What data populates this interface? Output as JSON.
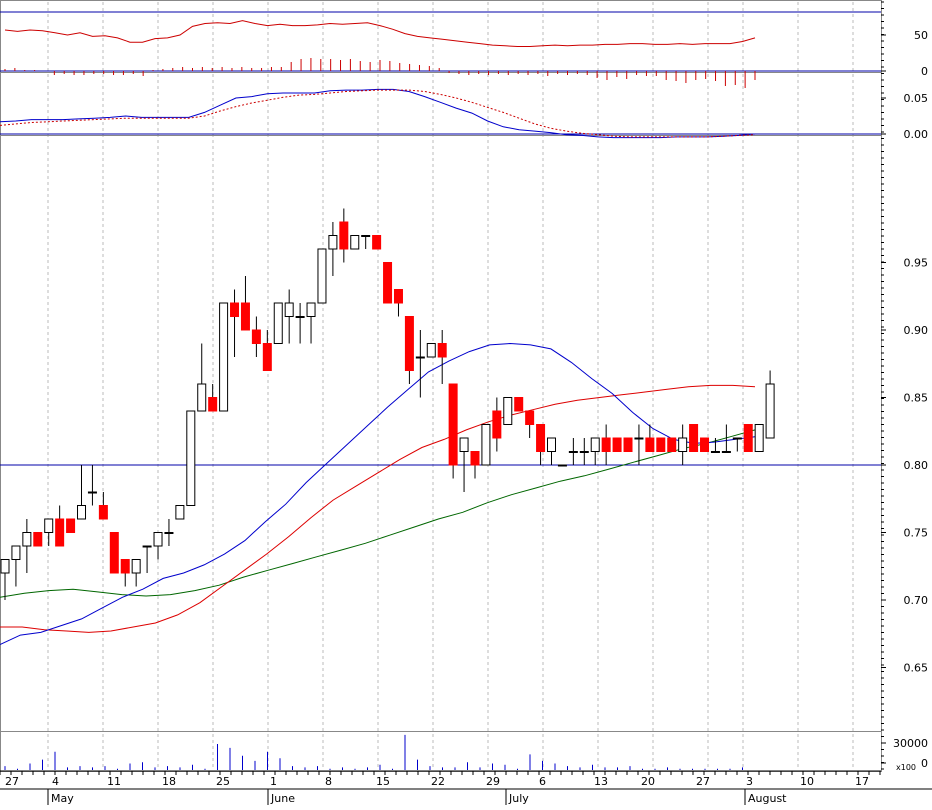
{
  "chart_data": [
    {
      "name": "RSI panel",
      "type": "line",
      "y_ticks": [
        "50",
        "0"
      ],
      "oscillator": [
        57,
        55,
        57,
        56,
        53,
        50,
        53,
        48,
        49,
        46,
        40,
        40,
        45,
        46,
        50,
        62,
        66,
        67,
        66,
        70,
        66,
        63,
        65,
        63,
        63,
        64,
        66,
        65,
        66,
        67,
        63,
        58,
        52,
        48,
        46,
        44,
        42,
        40,
        38,
        36,
        35,
        34,
        34,
        35,
        36,
        35,
        36,
        36,
        37,
        37,
        38,
        38,
        37,
        37,
        38,
        37,
        38,
        38,
        38,
        41,
        46
      ],
      "histogram": [
        2,
        3,
        1,
        1,
        0,
        -4,
        -3,
        -4,
        -4,
        -3,
        -3,
        -4,
        -4,
        -3,
        -5,
        1,
        2,
        3,
        4,
        3,
        4,
        3,
        4,
        3,
        4,
        3,
        3,
        4,
        4,
        9,
        12,
        13,
        12,
        12,
        11,
        12,
        10,
        9,
        11,
        10,
        8,
        7,
        6,
        5,
        3,
        -2,
        -3,
        -4,
        -3,
        -4,
        -3,
        -4,
        -3,
        -4,
        -3,
        -5,
        -3,
        -4,
        -3,
        -4,
        -7,
        -9,
        -6,
        -8,
        -4,
        -5,
        -5,
        -9,
        -10,
        -12,
        -9,
        -8,
        -10,
        -15,
        -14,
        -17,
        -9
      ]
    },
    {
      "name": "MACD panel",
      "type": "line",
      "y_ticks": [
        "0.05",
        "0.00"
      ],
      "macd": [
        0.017,
        0.018,
        0.02,
        0.02,
        0.02,
        0.021,
        0.022,
        0.023,
        0.025,
        0.023,
        0.023,
        0.023,
        0.023,
        0.03,
        0.04,
        0.05,
        0.052,
        0.056,
        0.057,
        0.057,
        0.057,
        0.06,
        0.061,
        0.061,
        0.062,
        0.062,
        0.059,
        0.052,
        0.044,
        0.036,
        0.029,
        0.018,
        0.01,
        0.006,
        0.004,
        0.002,
        -0.001,
        -0.002,
        -0.004,
        -0.005,
        -0.005,
        -0.005,
        -0.005,
        -0.004,
        -0.004,
        -0.004,
        -0.003,
        -0.002,
        0.0
      ],
      "signal": [
        0.012,
        0.014,
        0.016,
        0.017,
        0.018,
        0.019,
        0.02,
        0.021,
        0.022,
        0.022,
        0.022,
        0.022,
        0.022,
        0.025,
        0.032,
        0.038,
        0.043,
        0.047,
        0.051,
        0.054,
        0.055,
        0.057,
        0.059,
        0.06,
        0.061,
        0.061,
        0.061,
        0.059,
        0.055,
        0.05,
        0.044,
        0.037,
        0.03,
        0.022,
        0.014,
        0.008,
        0.004,
        0.001,
        -0.001,
        -0.003,
        -0.004,
        -0.004,
        -0.004,
        -0.004,
        -0.004,
        -0.004,
        -0.003,
        -0.002,
        -0.001
      ]
    },
    {
      "name": "Price panel",
      "type": "candlestick",
      "y_ticks": [
        "0.95",
        "0.90",
        "0.85",
        "0.80",
        "0.75",
        "0.70",
        "0.65"
      ],
      "reference_line": 0.8,
      "candles": [
        [
          0.72,
          0.73,
          0.7,
          0.73
        ],
        [
          0.73,
          0.74,
          0.71,
          0.74
        ],
        [
          0.74,
          0.76,
          0.72,
          0.75
        ],
        [
          0.75,
          0.75,
          0.74,
          0.74
        ],
        [
          0.75,
          0.76,
          0.74,
          0.76
        ],
        [
          0.76,
          0.77,
          0.74,
          0.74
        ],
        [
          0.76,
          0.76,
          0.75,
          0.75
        ],
        [
          0.76,
          0.8,
          0.76,
          0.77
        ],
        [
          0.78,
          0.8,
          0.77,
          0.78
        ],
        [
          0.77,
          0.78,
          0.76,
          0.76
        ],
        [
          0.75,
          0.75,
          0.72,
          0.72
        ],
        [
          0.73,
          0.73,
          0.71,
          0.72
        ],
        [
          0.72,
          0.73,
          0.71,
          0.73
        ],
        [
          0.74,
          0.74,
          0.72,
          0.74
        ],
        [
          0.74,
          0.75,
          0.73,
          0.75
        ],
        [
          0.75,
          0.76,
          0.74,
          0.75
        ],
        [
          0.76,
          0.77,
          0.76,
          0.77
        ],
        [
          0.77,
          0.84,
          0.77,
          0.84
        ],
        [
          0.84,
          0.89,
          0.84,
          0.86
        ],
        [
          0.85,
          0.86,
          0.84,
          0.84
        ],
        [
          0.84,
          0.92,
          0.84,
          0.92
        ],
        [
          0.92,
          0.93,
          0.88,
          0.91
        ],
        [
          0.92,
          0.94,
          0.9,
          0.9
        ],
        [
          0.9,
          0.91,
          0.88,
          0.89
        ],
        [
          0.89,
          0.9,
          0.87,
          0.87
        ],
        [
          0.89,
          0.92,
          0.89,
          0.92
        ],
        [
          0.91,
          0.93,
          0.89,
          0.92
        ],
        [
          0.91,
          0.92,
          0.89,
          0.91
        ],
        [
          0.91,
          0.92,
          0.89,
          0.92
        ],
        [
          0.92,
          0.96,
          0.92,
          0.96
        ],
        [
          0.96,
          0.98,
          0.94,
          0.97
        ],
        [
          0.98,
          0.99,
          0.95,
          0.96
        ],
        [
          0.96,
          0.97,
          0.96,
          0.97
        ],
        [
          0.97,
          0.97,
          0.96,
          0.97
        ],
        [
          0.97,
          0.97,
          0.96,
          0.96
        ],
        [
          0.95,
          0.95,
          0.92,
          0.92
        ],
        [
          0.93,
          0.93,
          0.91,
          0.92
        ],
        [
          0.91,
          0.91,
          0.86,
          0.87
        ],
        [
          0.88,
          0.9,
          0.85,
          0.88
        ],
        [
          0.88,
          0.89,
          0.88,
          0.89
        ],
        [
          0.89,
          0.9,
          0.86,
          0.88
        ],
        [
          0.86,
          0.86,
          0.79,
          0.8
        ],
        [
          0.81,
          0.82,
          0.78,
          0.82
        ],
        [
          0.81,
          0.81,
          0.79,
          0.8
        ],
        [
          0.8,
          0.83,
          0.8,
          0.83
        ],
        [
          0.84,
          0.85,
          0.81,
          0.82
        ],
        [
          0.83,
          0.85,
          0.83,
          0.85
        ],
        [
          0.85,
          0.85,
          0.84,
          0.84
        ],
        [
          0.84,
          0.84,
          0.82,
          0.83
        ],
        [
          0.83,
          0.83,
          0.8,
          0.81
        ],
        [
          0.81,
          0.82,
          0.8,
          0.82
        ],
        [
          0.8,
          0.8,
          0.8,
          0.8
        ],
        [
          0.81,
          0.82,
          0.8,
          0.81
        ],
        [
          0.81,
          0.82,
          0.8,
          0.81
        ],
        [
          0.81,
          0.82,
          0.8,
          0.82
        ],
        [
          0.82,
          0.83,
          0.8,
          0.81
        ],
        [
          0.82,
          0.82,
          0.81,
          0.81
        ],
        [
          0.82,
          0.82,
          0.81,
          0.81
        ],
        [
          0.82,
          0.83,
          0.8,
          0.82
        ],
        [
          0.82,
          0.83,
          0.81,
          0.81
        ],
        [
          0.82,
          0.82,
          0.81,
          0.81
        ],
        [
          0.82,
          0.82,
          0.81,
          0.81
        ],
        [
          0.81,
          0.83,
          0.8,
          0.82
        ],
        [
          0.83,
          0.83,
          0.81,
          0.81
        ],
        [
          0.82,
          0.82,
          0.81,
          0.81
        ],
        [
          0.81,
          0.82,
          0.81,
          0.81
        ],
        [
          0.81,
          0.83,
          0.81,
          0.81
        ],
        [
          0.82,
          0.82,
          0.81,
          0.82
        ],
        [
          0.83,
          0.83,
          0.81,
          0.81
        ],
        [
          0.81,
          0.83,
          0.81,
          0.83
        ],
        [
          0.82,
          0.87,
          0.82,
          0.86
        ]
      ],
      "ma_short": [
        0.667,
        0.674,
        0.676,
        0.681,
        0.686,
        0.694,
        0.702,
        0.708,
        0.716,
        0.72,
        0.726,
        0.734,
        0.744,
        0.758,
        0.771,
        0.787,
        0.801,
        0.815,
        0.829,
        0.843,
        0.856,
        0.869,
        0.877,
        0.884,
        0.889,
        0.89,
        0.889,
        0.886,
        0.876,
        0.864,
        0.853,
        0.839,
        0.827,
        0.819,
        0.816,
        0.817,
        0.819,
        0.821
      ],
      "ma_mid": [
        0.68,
        0.68,
        0.678,
        0.677,
        0.676,
        0.677,
        0.68,
        0.683,
        0.689,
        0.698,
        0.71,
        0.722,
        0.734,
        0.747,
        0.761,
        0.774,
        0.784,
        0.794,
        0.804,
        0.813,
        0.819,
        0.826,
        0.832,
        0.837,
        0.841,
        0.845,
        0.848,
        0.85,
        0.852,
        0.854,
        0.856,
        0.858,
        0.859,
        0.859,
        0.858
      ],
      "ma_long": [
        0.702,
        0.705,
        0.707,
        0.708,
        0.706,
        0.704,
        0.703,
        0.704,
        0.707,
        0.711,
        0.717,
        0.722,
        0.727,
        0.732,
        0.737,
        0.742,
        0.748,
        0.754,
        0.76,
        0.765,
        0.772,
        0.778,
        0.783,
        0.788,
        0.792,
        0.797,
        0.802,
        0.807,
        0.812,
        0.816,
        0.821,
        0.826
      ],
      "colors": {
        "up_body": "#ffffff",
        "down_body": "#ff0000",
        "ma_short": "#0000cc",
        "ma_mid": "#dd0000",
        "ma_long": "#006600"
      }
    },
    {
      "name": "Volume panel",
      "type": "bar",
      "y_ticks": [
        "30000",
        "0"
      ],
      "unit_label": "x100",
      "values": [
        3,
        1,
        5,
        8,
        14,
        2,
        3,
        2,
        3,
        1,
        5,
        6,
        2,
        3,
        2,
        4,
        1,
        20,
        17,
        11,
        7,
        14,
        9,
        3,
        2,
        3,
        1,
        2,
        1,
        2,
        4,
        1,
        27,
        8,
        3,
        2,
        2,
        6,
        2,
        5,
        4,
        1,
        12,
        7,
        5,
        3,
        2,
        4,
        2,
        2,
        3,
        1,
        1,
        2,
        1,
        1,
        1,
        1,
        1,
        2
      ]
    }
  ],
  "x_axis": {
    "day_labels": [
      "27",
      "4",
      "11",
      "18",
      "25",
      "1",
      "8",
      "15",
      "22",
      "29",
      "6",
      "13",
      "20",
      "27",
      "3",
      "10",
      "17"
    ],
    "month_labels": [
      "May",
      "June",
      "July",
      "August"
    ]
  }
}
